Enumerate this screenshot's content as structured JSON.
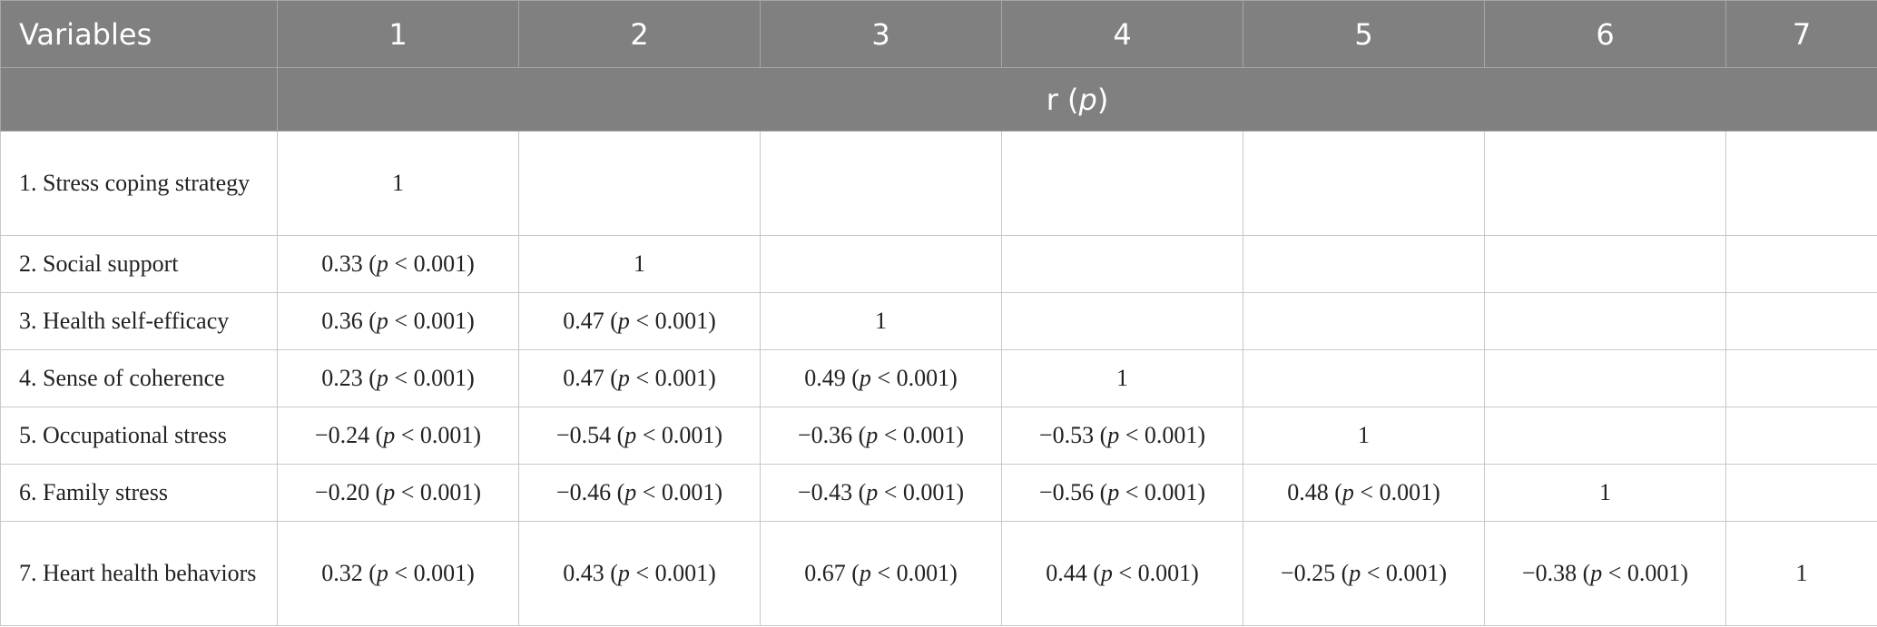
{
  "table": {
    "header": [
      "Variables",
      "1",
      "2",
      "3",
      "4",
      "5",
      "6",
      "7"
    ],
    "subheader": [
      "r (",
      "p",
      ")"
    ],
    "rows": [
      {
        "label": "1. Stress coping strategy",
        "cells": [
          [
            "1"
          ],
          null,
          null,
          null,
          null,
          null,
          null
        ]
      },
      {
        "label": "2. Social support",
        "cells": [
          [
            "0.33 (",
            "p",
            " < 0.001)"
          ],
          [
            "1"
          ],
          null,
          null,
          null,
          null,
          null
        ]
      },
      {
        "label": "3. Health self-efficacy",
        "cells": [
          [
            "0.36 (",
            "p",
            " < 0.001)"
          ],
          [
            "0.47 (",
            "p",
            " < 0.001)"
          ],
          [
            "1"
          ],
          null,
          null,
          null,
          null
        ]
      },
      {
        "label": "4. Sense of coherence",
        "cells": [
          [
            "0.23 (",
            "p",
            " < 0.001)"
          ],
          [
            "0.47 (",
            "p",
            " < 0.001)"
          ],
          [
            "0.49 (",
            "p",
            " < 0.001)"
          ],
          [
            "1"
          ],
          null,
          null,
          null
        ]
      },
      {
        "label": "5. Occupational stress",
        "cells": [
          [
            "−0.24 (",
            "p",
            " < 0.001)"
          ],
          [
            "−0.54 (",
            "p",
            " < 0.001)"
          ],
          [
            "−0.36 (",
            "p",
            " < 0.001)"
          ],
          [
            "−0.53 (",
            "p",
            " < 0.001)"
          ],
          [
            "1"
          ],
          null,
          null
        ]
      },
      {
        "label": "6. Family stress",
        "cells": [
          [
            "−0.20 (",
            "p",
            " < 0.001)"
          ],
          [
            "−0.46 (",
            "p",
            " < 0.001)"
          ],
          [
            "−0.43 (",
            "p",
            " < 0.001)"
          ],
          [
            "−0.56 (",
            "p",
            " < 0.001)"
          ],
          [
            "0.48 (",
            "p",
            " < 0.001)"
          ],
          [
            "1"
          ],
          null
        ]
      },
      {
        "label": "7. Heart health behaviors",
        "cells": [
          [
            "0.32 (",
            "p",
            " < 0.001)"
          ],
          [
            "0.43 (",
            "p",
            " < 0.001)"
          ],
          [
            "0.67 (",
            "p",
            " < 0.001)"
          ],
          [
            "0.44 (",
            "p",
            " < 0.001)"
          ],
          [
            "−0.25 (",
            "p",
            " < 0.001)"
          ],
          [
            "−0.38 (",
            "p",
            " < 0.001)"
          ],
          [
            "1"
          ]
        ]
      }
    ]
  }
}
